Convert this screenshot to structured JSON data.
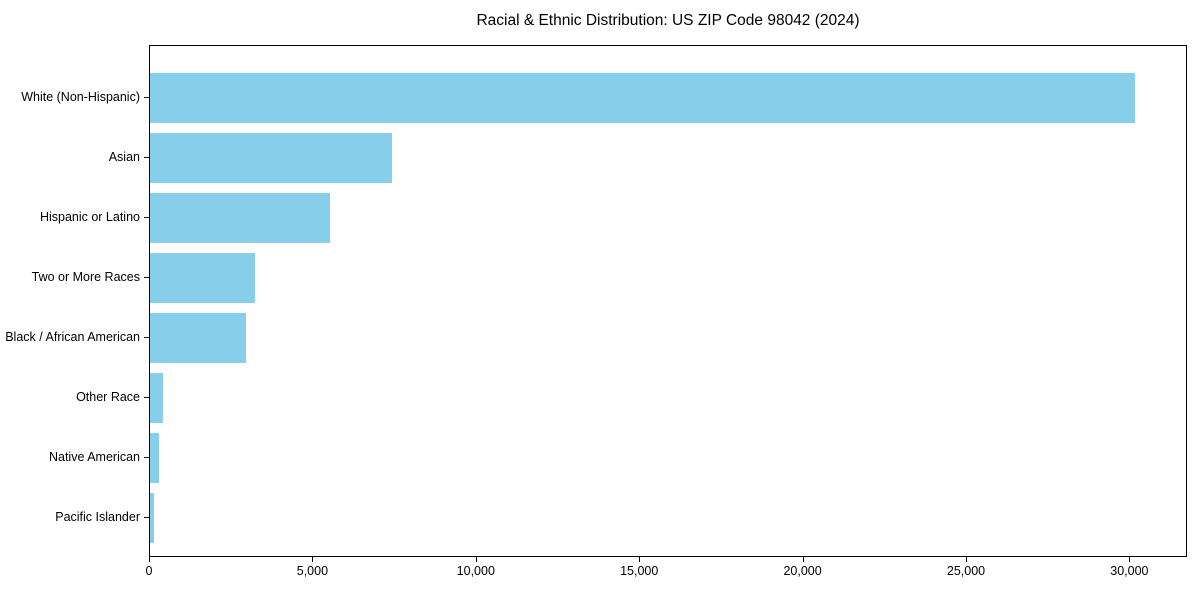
{
  "chart_data": {
    "type": "bar",
    "orientation": "horizontal",
    "title": "Racial & Ethnic Distribution: US ZIP Code 98042 (2024)",
    "categories": [
      "White (Non-Hispanic)",
      "Asian",
      "Hispanic or Latino",
      "Two or More Races",
      "Black / African American",
      "Other Race",
      "Native American",
      "Pacific Islander"
    ],
    "values": [
      30150,
      7400,
      5500,
      3200,
      2950,
      400,
      270,
      130
    ],
    "x_ticks": [
      0,
      5000,
      10000,
      15000,
      20000,
      25000,
      30000
    ],
    "x_tick_labels": [
      "0",
      "5,000",
      "10,000",
      "15,000",
      "20,000",
      "25,000",
      "30,000"
    ],
    "xlim": [
      0,
      31700
    ],
    "xlabel": "",
    "ylabel": "",
    "grid": false,
    "legend": "none",
    "bar_color": "#87CEEB",
    "frame_color": "#000000",
    "background_color": "#FFFFFF",
    "text_color": "#000000"
  }
}
